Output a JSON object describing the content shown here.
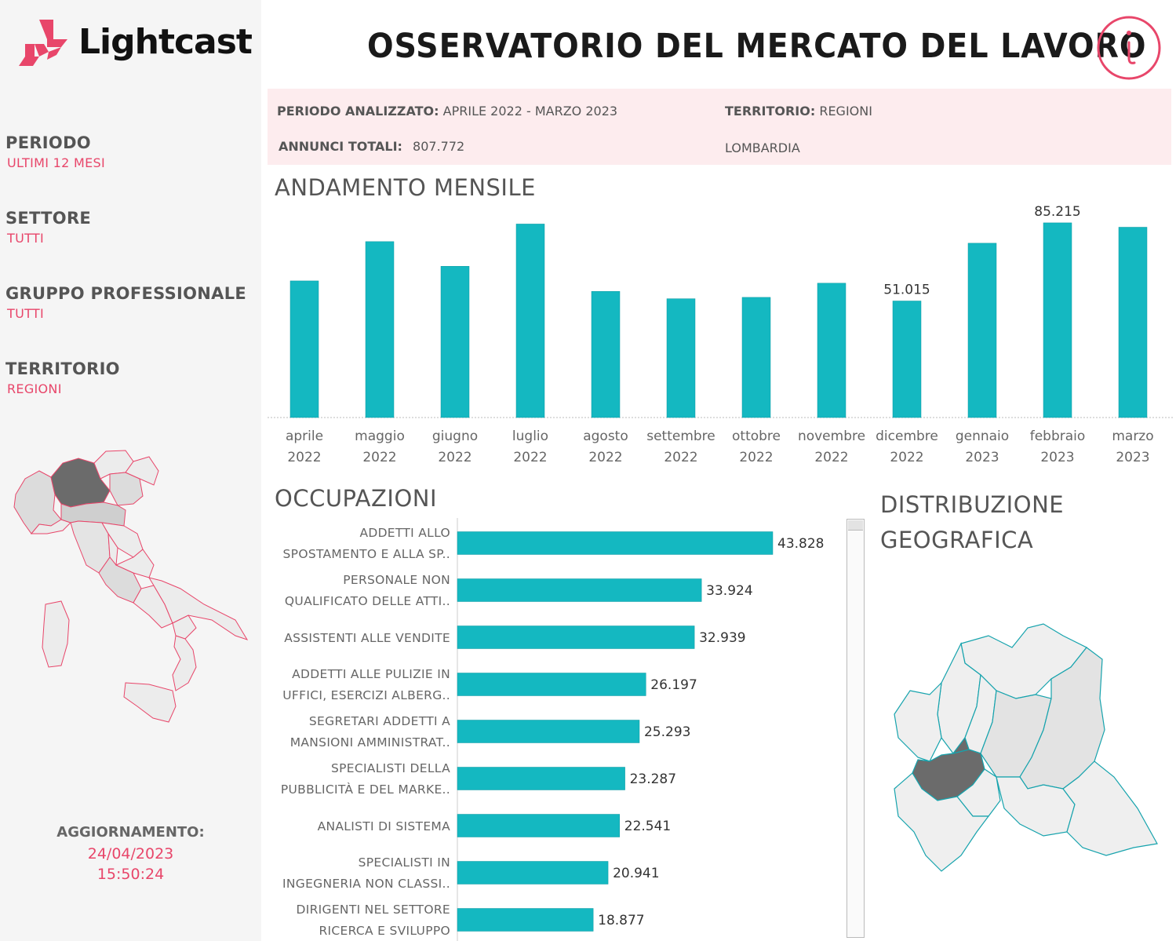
{
  "brand": {
    "name": "Lightcast"
  },
  "header": {
    "title": "OSSERVATORIO DEL MERCATO DEL LAVORO",
    "info_icon": "info-icon"
  },
  "sidebar": {
    "filters": [
      {
        "label": "PERIODO",
        "value": "ULTIMI 12 MESI"
      },
      {
        "label": "SETTORE",
        "value": "TUTTI"
      },
      {
        "label": "GRUPPO PROFESSIONALE",
        "value": "TUTTI"
      },
      {
        "label": "TERRITORIO",
        "value": "REGIONI"
      }
    ],
    "update": {
      "label": "AGGIORNAMENTO:",
      "date": "24/04/2023",
      "time": "15:50:24"
    }
  },
  "summary": {
    "period_label": "PERIODO ANALIZZATO:",
    "period_value": "APRILE 2022 - MARZO 2023",
    "total_label": "ANNUNCI TOTALI:",
    "total_value": "807.772",
    "territory_label": "TERRITORIO:",
    "territory_value": "REGIONI",
    "region": "LOMBARDIA"
  },
  "sections": {
    "monthly": "ANDAMENTO MENSILE",
    "occupations": "OCCUPAZIONI",
    "geo": "DISTRIBUZIONE GEOGRAFICA"
  },
  "colors": {
    "bar": "#14b8c1",
    "accent": "#e8466a",
    "highlight_region": "#6b6b6b",
    "region_fill": "#ececec"
  },
  "chart_data": [
    {
      "type": "bar",
      "title": "ANDAMENTO MENSILE",
      "categories": [
        "aprile 2022",
        "maggio 2022",
        "giugno 2022",
        "luglio 2022",
        "agosto 2022",
        "settembre 2022",
        "ottobre 2022",
        "novembre 2022",
        "dicembre 2022",
        "gennaio 2023",
        "febbraio 2023",
        "marzo 2023"
      ],
      "values": [
        59800,
        77000,
        66200,
        84700,
        55200,
        52000,
        52600,
        58800,
        51015,
        76300,
        85215,
        83300
      ],
      "data_labels": {
        "8": "51.015",
        "10": "85.215"
      },
      "ylim": [
        0,
        90000
      ],
      "grid": false
    },
    {
      "type": "bar",
      "orientation": "horizontal",
      "title": "OCCUPAZIONI",
      "categories": [
        [
          "ADDETTI ALLO",
          "SPOSTAMENTO E ALLA SP.."
        ],
        [
          "PERSONALE NON",
          "QUALIFICATO DELLE ATTI.."
        ],
        [
          "ASSISTENTI ALLE VENDITE"
        ],
        [
          "ADDETTI ALLE PULIZIE IN",
          "UFFICI, ESERCIZI ALBERG.."
        ],
        [
          "SEGRETARI ADDETTI A",
          "MANSIONI AMMINISTRAT.."
        ],
        [
          "SPECIALISTI DELLA",
          "PUBBLICITÀ E DEL MARKE.."
        ],
        [
          "ANALISTI DI SISTEMA"
        ],
        [
          "SPECIALISTI IN",
          "INGEGNERIA NON CLASSI.."
        ],
        [
          "DIRIGENTI NEL SETTORE",
          "RICERCA E SVILUPPO"
        ]
      ],
      "values": [
        43828,
        33924,
        32939,
        26197,
        25293,
        23287,
        22541,
        20941,
        18877
      ],
      "labels": [
        "43.828",
        "33.924",
        "32.939",
        "26.197",
        "25.293",
        "23.287",
        "22.541",
        "20.941",
        "18.877"
      ],
      "xlim": [
        0,
        43828
      ]
    }
  ]
}
